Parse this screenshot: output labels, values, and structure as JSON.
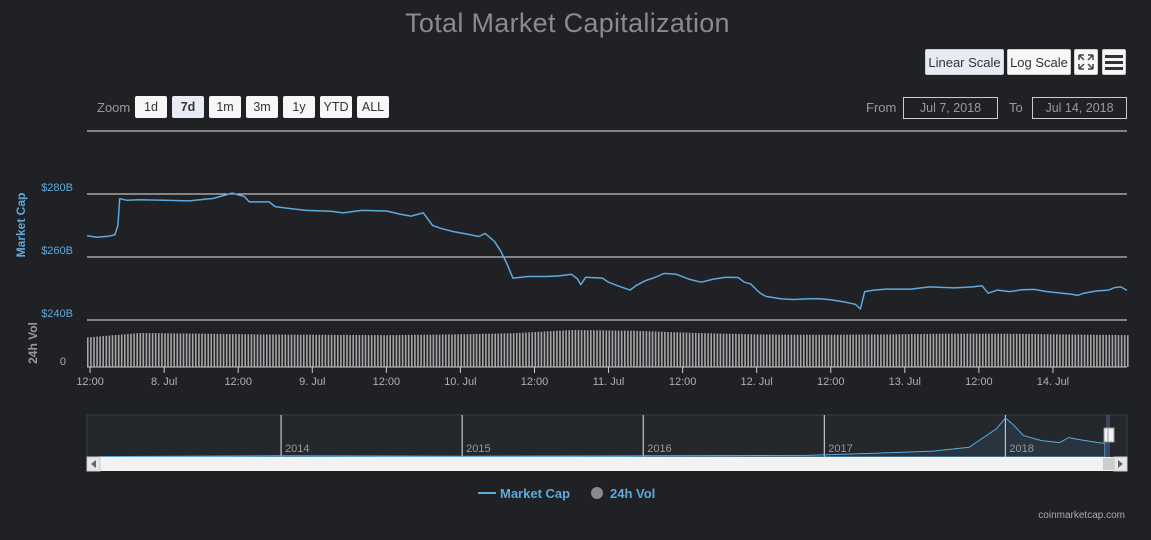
{
  "title": "Total Market Capitalization",
  "buttons": {
    "linear": "Linear Scale",
    "log": "Log Scale"
  },
  "icons": {
    "fullscreen": "fullscreen-icon",
    "menu": "hamburger-menu-icon"
  },
  "zoom": {
    "label": "Zoom",
    "options": [
      "1d",
      "7d",
      "1m",
      "3m",
      "1y",
      "YTD",
      "ALL"
    ],
    "active": "7d"
  },
  "range": {
    "from_label": "From",
    "from_value": "Jul 7, 2018",
    "to_label": "To",
    "to_value": "Jul 14, 2018"
  },
  "legend": {
    "market_cap": "Market Cap",
    "volume": "24h Vol"
  },
  "credits": "coinmarketcap.com",
  "colors": {
    "accent": "#5ea9dd",
    "background": "#1f2125",
    "volume": "#a6a6a6"
  },
  "chart_data": {
    "type": "line",
    "ylabel": "Market Cap",
    "ylabel_volume": "24h Vol",
    "y_ticks": [
      "$280B",
      "$260B",
      "$240B"
    ],
    "y_tick_values": [
      280,
      260,
      240
    ],
    "ylim": [
      240,
      300
    ],
    "volume_ticks": [
      "0"
    ],
    "x_tick_labels": [
      "12:00",
      "8. Jul",
      "12:00",
      "9. Jul",
      "12:00",
      "10. Jul",
      "12:00",
      "11. Jul",
      "12:00",
      "12. Jul",
      "12:00",
      "13. Jul",
      "12:00",
      "14. Jul"
    ],
    "x_tick_hours": [
      12,
      24,
      36,
      48,
      60,
      72,
      84,
      96,
      108,
      120,
      132,
      144,
      156,
      168
    ],
    "xlim_hours": [
      11.5,
      180
    ],
    "series": [
      {
        "name": "Market Cap",
        "unit": "billion USD",
        "points": [
          [
            11.5,
            266.8
          ],
          [
            13.0,
            266.3
          ],
          [
            15.0,
            266.6
          ],
          [
            16.0,
            267.0
          ],
          [
            16.5,
            270
          ],
          [
            16.8,
            278.5
          ],
          [
            18.0,
            278.0
          ],
          [
            20.0,
            278.2
          ],
          [
            24.0,
            278.0
          ],
          [
            28.0,
            277.8
          ],
          [
            32.0,
            278.6
          ],
          [
            35.0,
            280.3
          ],
          [
            37.0,
            279.2
          ],
          [
            37.8,
            277.5
          ],
          [
            41.0,
            277.5
          ],
          [
            42.0,
            276.0
          ],
          [
            44.0,
            275.5
          ],
          [
            47.0,
            274.8
          ],
          [
            51.0,
            274.5
          ],
          [
            53.0,
            274.0
          ],
          [
            56.0,
            274.8
          ],
          [
            60.0,
            274.6
          ],
          [
            62.5,
            273.5
          ],
          [
            64.0,
            273.0
          ],
          [
            66.0,
            274.0
          ],
          [
            67.5,
            270.0
          ],
          [
            69.0,
            269.0
          ],
          [
            71.0,
            268.0
          ],
          [
            73.0,
            267.3
          ],
          [
            75.0,
            266.5
          ],
          [
            76.0,
            267.5
          ],
          [
            77.5,
            265.0
          ],
          [
            78.5,
            262.0
          ],
          [
            79.5,
            258.0
          ],
          [
            80.5,
            253.3
          ],
          [
            83.0,
            253.8
          ],
          [
            86.0,
            253.8
          ],
          [
            88.0,
            254.0
          ],
          [
            90.0,
            254.5
          ],
          [
            91.0,
            253.0
          ],
          [
            91.5,
            251.2
          ],
          [
            92.3,
            253.6
          ],
          [
            95.0,
            253.3
          ],
          [
            96.0,
            252.0
          ],
          [
            98.0,
            250.5
          ],
          [
            99.5,
            249.5
          ],
          [
            100.5,
            251.0
          ],
          [
            102.0,
            252.5
          ],
          [
            103.5,
            253.5
          ],
          [
            105.0,
            254.8
          ],
          [
            107.0,
            254.5
          ],
          [
            109.0,
            253.0
          ],
          [
            111.0,
            252.0
          ],
          [
            113.0,
            253.0
          ],
          [
            115.0,
            253.6
          ],
          [
            117.0,
            253.5
          ],
          [
            118.0,
            252.0
          ],
          [
            119.0,
            251.5
          ],
          [
            120.5,
            248.6
          ],
          [
            121.5,
            247.5
          ],
          [
            124.0,
            246.7
          ],
          [
            126.0,
            246.5
          ],
          [
            128.0,
            246.7
          ],
          [
            130.0,
            246.8
          ],
          [
            132.0,
            246.4
          ],
          [
            134.0,
            245.8
          ],
          [
            136.0,
            245.0
          ],
          [
            136.8,
            243.5
          ],
          [
            137.5,
            249.0
          ],
          [
            139.0,
            249.5
          ],
          [
            141.0,
            249.8
          ],
          [
            145.0,
            249.8
          ],
          [
            148.0,
            250.5
          ],
          [
            152.0,
            250.2
          ],
          [
            155.0,
            250.5
          ],
          [
            156.5,
            250.9
          ],
          [
            157.5,
            248.5
          ],
          [
            159.0,
            249.5
          ],
          [
            161.0,
            249.0
          ],
          [
            163.0,
            249.6
          ],
          [
            165.0,
            249.7
          ],
          [
            167.0,
            249.0
          ],
          [
            169.0,
            248.6
          ],
          [
            171.0,
            248.2
          ],
          [
            172.0,
            247.8
          ],
          [
            173.0,
            248.5
          ],
          [
            175.0,
            249.2
          ],
          [
            177.0,
            249.5
          ],
          [
            178.0,
            250.3
          ],
          [
            179.0,
            250.5
          ],
          [
            180.0,
            249.4
          ]
        ]
      },
      {
        "name": "24h Vol",
        "profile_hours": [
          11.5,
          20,
          30,
          40,
          50,
          60,
          70,
          80,
          90,
          100,
          110,
          120,
          130,
          140,
          150,
          160,
          170,
          180
        ],
        "profile_level": [
          0.8,
          0.92,
          0.9,
          0.88,
          0.87,
          0.86,
          0.88,
          0.91,
          1.0,
          0.98,
          0.92,
          0.88,
          0.87,
          0.88,
          0.9,
          0.9,
          0.88,
          0.86
        ]
      }
    ],
    "navigator": {
      "x_tick_labels": [
        "2014",
        "2015",
        "2016",
        "2017",
        "2018"
      ],
      "profile_years": [
        2013.0,
        2014.0,
        2015.0,
        2016.0,
        2016.9,
        2017.3,
        2017.6,
        2017.8,
        2017.95,
        2018.0,
        2018.05,
        2018.1,
        2018.2,
        2018.3,
        2018.35,
        2018.4,
        2018.5,
        2018.55
      ],
      "profile_level": [
        0.01,
        0.03,
        0.02,
        0.03,
        0.04,
        0.1,
        0.15,
        0.25,
        0.72,
        1.0,
        0.8,
        0.55,
        0.42,
        0.37,
        0.5,
        0.45,
        0.38,
        0.35
      ],
      "xlim_years": [
        2013.0,
        2018.6
      ]
    }
  }
}
